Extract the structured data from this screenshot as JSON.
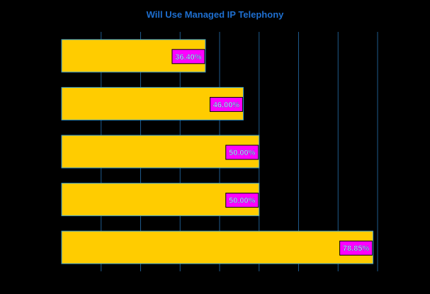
{
  "chart_data": {
    "type": "bar",
    "orientation": "horizontal",
    "title": "Will Use Managed IP Telephony",
    "xlabel": "",
    "ylabel": "",
    "categories": [
      "",
      "",
      "",
      "",
      ""
    ],
    "values": [
      36.4,
      46.0,
      50.0,
      50.0,
      78.85
    ],
    "data_labels": [
      "36.40%",
      "46.00%",
      "50.00%",
      "50.00%",
      "78.85%"
    ],
    "xlim": [
      0,
      80
    ],
    "grid": true,
    "legend": "none"
  },
  "colors": {
    "background": "#000000",
    "bar_fill": "#FFCC00",
    "bar_stroke": "#3399CC",
    "label_fill": "#FF00FF",
    "label_text": "#CCCCFF",
    "title": "#1E6FD0",
    "grid": "#1E5A8C"
  }
}
